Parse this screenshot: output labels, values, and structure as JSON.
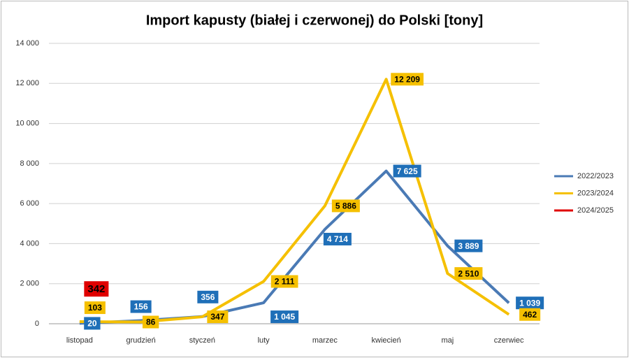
{
  "chart_data": {
    "type": "line",
    "title": "Import kapusty (białej i czerwonej) do Polski [tony]",
    "categories": [
      "listopad",
      "grudzień",
      "styczeń",
      "luty",
      "marzec",
      "kwiecień",
      "maj",
      "czerwiec"
    ],
    "series": [
      {
        "name": "2022/2023",
        "color": "#4a7ab5",
        "label_color": "#1f6fb8",
        "label_text_color": "#ffffff",
        "values": [
          20,
          156,
          356,
          1045,
          4714,
          7625,
          3889,
          1039
        ],
        "value_labels": [
          "20",
          "156",
          "356",
          "1 045",
          "4 714",
          "7 625",
          "3 889",
          "1 039"
        ]
      },
      {
        "name": "2023/2024",
        "color": "#f5c000",
        "label_color": "#f5c000",
        "label_text_color": "#000000",
        "values": [
          103,
          86,
          347,
          2111,
          5886,
          12209,
          2510,
          462
        ],
        "value_labels": [
          "103",
          "86",
          "347",
          "2 111",
          "5 886",
          "12 209",
          "2 510",
          "462"
        ]
      },
      {
        "name": "2024/2025",
        "color": "#e00000",
        "label_color": "#e00000",
        "label_text_color": "#000000",
        "values": [
          342,
          null,
          null,
          null,
          null,
          null,
          null,
          null
        ],
        "value_labels": [
          "342",
          null,
          null,
          null,
          null,
          null,
          null,
          null
        ]
      }
    ],
    "ylim": [
      0,
      14000
    ],
    "yticks": [
      0,
      {
        "value": 2000,
        "label": "2 000"
      },
      {
        "value": 4000,
        "label": "4 000"
      },
      {
        "value": 6000,
        "label": "6 000"
      },
      {
        "value": 8000,
        "label": "8 000"
      },
      {
        "value": 10000,
        "label": "10 000"
      },
      {
        "value": 12000,
        "label": "12 000"
      },
      {
        "value": 14000,
        "label": "14 000"
      }
    ],
    "grid": true,
    "legend": "right"
  }
}
